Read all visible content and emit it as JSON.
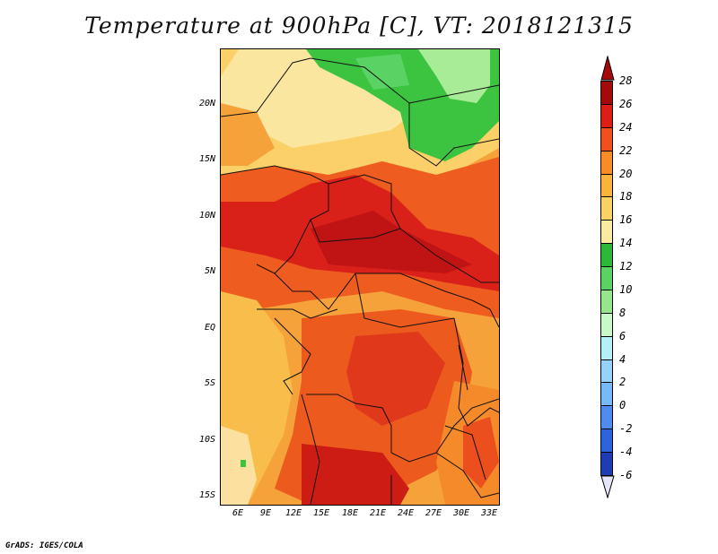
{
  "title": "Temperature at 900hPa [C], VT: 2018121315",
  "credit": "GrADS: IGES/COLA",
  "map": {
    "lat_labels": [
      "20N",
      "15N",
      "10N",
      "5N",
      "EQ",
      "5S",
      "10S",
      "15S"
    ],
    "lon_labels": [
      "6E",
      "9E",
      "12E",
      "15E",
      "18E",
      "21E",
      "24E",
      "27E",
      "30E",
      "33E"
    ]
  },
  "colorbar": {
    "labels": [
      "28",
      "26",
      "24",
      "22",
      "20",
      "18",
      "16",
      "14",
      "12",
      "10",
      "8",
      "6",
      "4",
      "2",
      "0",
      "-2",
      "-4",
      "-6"
    ],
    "colors": [
      "#a50a0a",
      "#dc1e14",
      "#f0501e",
      "#fa8c28",
      "#fab43c",
      "#fad264",
      "#faeba0",
      "#2db937",
      "#5ad264",
      "#96e68c",
      "#c8fac8",
      "#b4f0fa",
      "#96d2fa",
      "#78b9fa",
      "#508cf0",
      "#2d64dc",
      "#1e3cb4",
      "#0a1478"
    ]
  }
}
